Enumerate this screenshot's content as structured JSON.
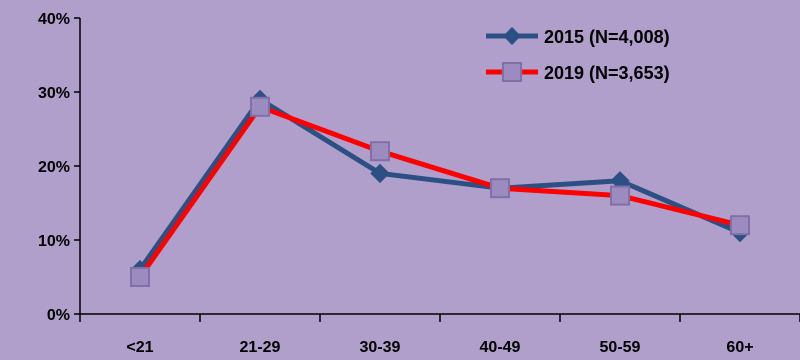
{
  "chart_data": {
    "type": "line",
    "categories": [
      "<21",
      "21-29",
      "30-39",
      "40-49",
      "50-59",
      "60+"
    ],
    "ylim": [
      0,
      40
    ],
    "y_ticks": [
      "0%",
      "10%",
      "20%",
      "30%",
      "40%"
    ],
    "y_tick_values": [
      0,
      10,
      20,
      30,
      40
    ],
    "grid": false,
    "legend_position": "top-right",
    "series": [
      {
        "name": "2015 (N=4,008)",
        "values": [
          6,
          29,
          19,
          17,
          18,
          11
        ],
        "color": "#2c5083",
        "marker": "diamond"
      },
      {
        "name": "2019 (N=3,653)",
        "values": [
          5,
          28,
          22,
          17,
          16,
          12
        ],
        "color": "#ff0000",
        "marker": "square",
        "marker_fill": "#9c8bbf"
      }
    ],
    "background_color": "#b09fca"
  }
}
